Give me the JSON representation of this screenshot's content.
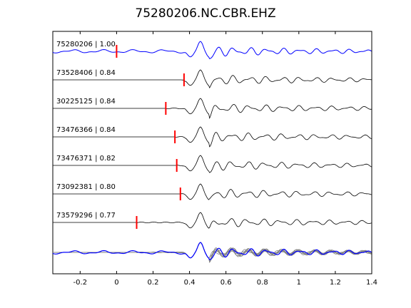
{
  "chart_data": {
    "type": "line",
    "title": "75280206.NC.CBR.EHZ",
    "xlim": [
      -0.35,
      1.4
    ],
    "x_ticks": [
      "-0.2",
      "0",
      "0.2",
      "0.4",
      "0.6",
      "0.8",
      "1",
      "1.2",
      "1.4"
    ],
    "x_tick_values": [
      -0.2,
      0,
      0.2,
      0.4,
      0.6,
      0.8,
      1.0,
      1.2,
      1.4
    ],
    "grid": false,
    "colors": {
      "reference": "#0000ff",
      "traces": "#000000",
      "picks": "#ff0000",
      "stack": "#808080"
    },
    "traces": [
      {
        "label": "75280206 | 1.00",
        "event_id": "75280206",
        "correlation": 1.0,
        "pick_time": 0.0,
        "primary_peak_time": 0.46,
        "reference": true
      },
      {
        "label": "73528406 | 0.84",
        "event_id": "73528406",
        "correlation": 0.84,
        "pick_time": 0.37,
        "primary_peak_time": 0.46,
        "reference": false
      },
      {
        "label": "30225125 | 0.84",
        "event_id": "30225125",
        "correlation": 0.84,
        "pick_time": 0.27,
        "primary_peak_time": 0.46,
        "reference": false
      },
      {
        "label": "73476366 | 0.84",
        "event_id": "73476366",
        "correlation": 0.84,
        "pick_time": 0.32,
        "primary_peak_time": 0.46,
        "reference": false
      },
      {
        "label": "73476371 | 0.82",
        "event_id": "73476371",
        "correlation": 0.82,
        "pick_time": 0.33,
        "primary_peak_time": 0.46,
        "reference": false
      },
      {
        "label": "73092381 | 0.80",
        "event_id": "73092381",
        "correlation": 0.8,
        "pick_time": 0.35,
        "primary_peak_time": 0.46,
        "reference": false
      },
      {
        "label": "73579296 | 0.77",
        "event_id": "73579296",
        "correlation": 0.77,
        "pick_time": 0.11,
        "primary_peak_time": 0.46,
        "reference": false
      }
    ],
    "overlay": {
      "shown": true
    }
  }
}
